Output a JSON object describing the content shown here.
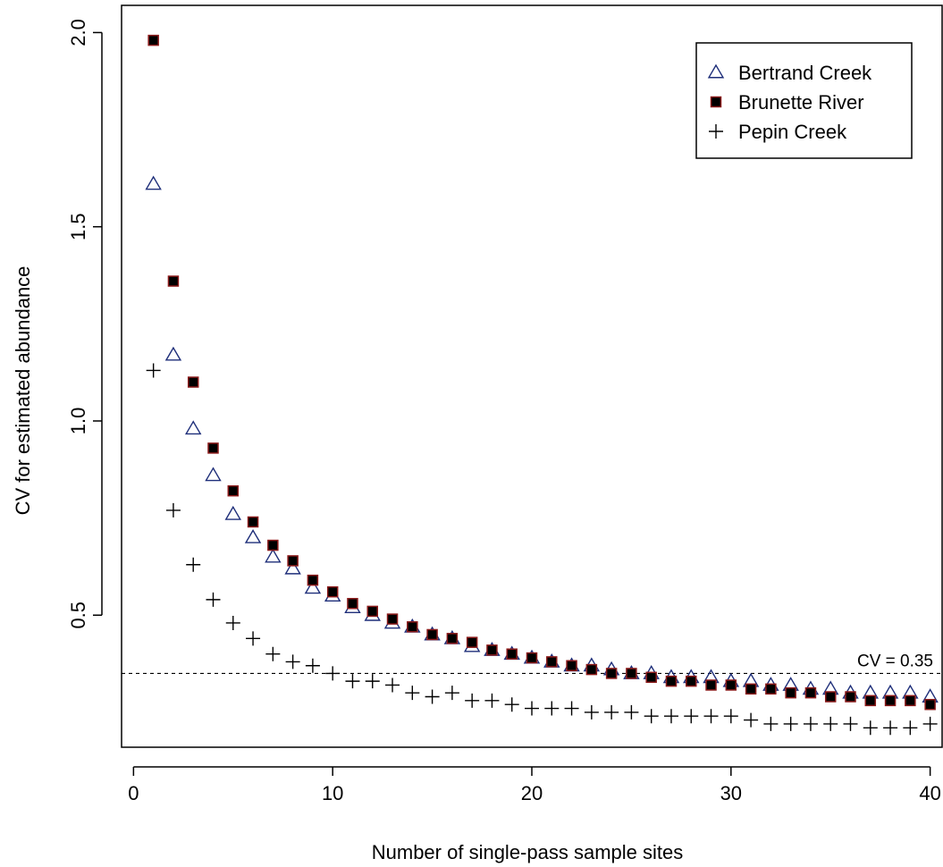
{
  "chart_data": {
    "type": "scatter",
    "title": "",
    "xlabel": "Number of single-pass sample sites",
    "ylabel": "CV for estimated abundance",
    "xlim": [
      -0.6,
      40.6
    ],
    "ylim": [
      0.16,
      2.07
    ],
    "xticks": [
      0,
      10,
      20,
      30,
      40
    ],
    "yticks": [
      0.5,
      1.0,
      1.5,
      2.0
    ],
    "xtick_labels": [
      "0",
      "10",
      "20",
      "30",
      "40"
    ],
    "ytick_labels": [
      "0.5",
      "1.0",
      "1.5",
      "2.0"
    ],
    "grid": false,
    "legend_position": "top-right",
    "x": [
      1,
      2,
      3,
      4,
      5,
      6,
      7,
      8,
      9,
      10,
      11,
      12,
      13,
      14,
      15,
      16,
      17,
      18,
      19,
      20,
      21,
      22,
      23,
      24,
      25,
      26,
      27,
      28,
      29,
      30,
      31,
      32,
      33,
      34,
      35,
      36,
      37,
      38,
      39,
      40
    ],
    "series": [
      {
        "name": "Bertrand Creek",
        "marker": "triangle",
        "color": "#1f2f7a",
        "values": [
          1.61,
          1.17,
          0.98,
          0.86,
          0.76,
          0.7,
          0.65,
          0.62,
          0.57,
          0.55,
          0.52,
          0.5,
          0.48,
          0.47,
          0.45,
          0.44,
          0.42,
          0.41,
          0.4,
          0.39,
          0.38,
          0.37,
          0.37,
          0.36,
          0.35,
          0.35,
          0.34,
          0.34,
          0.34,
          0.33,
          0.33,
          0.32,
          0.32,
          0.31,
          0.31,
          0.3,
          0.3,
          0.3,
          0.3,
          0.29
        ]
      },
      {
        "name": "Brunette River",
        "marker": "square",
        "color": "#000000",
        "edge_color": "#8b1a1a",
        "values": [
          1.98,
          1.36,
          1.1,
          0.93,
          0.82,
          0.74,
          0.68,
          0.64,
          0.59,
          0.56,
          0.53,
          0.51,
          0.49,
          0.47,
          0.45,
          0.44,
          0.43,
          0.41,
          0.4,
          0.39,
          0.38,
          0.37,
          0.36,
          0.35,
          0.35,
          0.34,
          0.33,
          0.33,
          0.32,
          0.32,
          0.31,
          0.31,
          0.3,
          0.3,
          0.29,
          0.29,
          0.28,
          0.28,
          0.28,
          0.27
        ]
      },
      {
        "name": "Pepin Creek",
        "marker": "plus",
        "color": "#000000",
        "values": [
          1.13,
          0.77,
          0.63,
          0.54,
          0.48,
          0.44,
          0.4,
          0.38,
          0.37,
          0.35,
          0.33,
          0.33,
          0.32,
          0.3,
          0.29,
          0.3,
          0.28,
          0.28,
          0.27,
          0.26,
          0.26,
          0.26,
          0.25,
          0.25,
          0.25,
          0.24,
          0.24,
          0.24,
          0.24,
          0.24,
          0.23,
          0.22,
          0.22,
          0.22,
          0.22,
          0.22,
          0.21,
          0.21,
          0.21,
          0.22
        ]
      }
    ],
    "reference_line": {
      "y": 0.35,
      "style": "dashed",
      "label": "CV = 0.35"
    }
  }
}
